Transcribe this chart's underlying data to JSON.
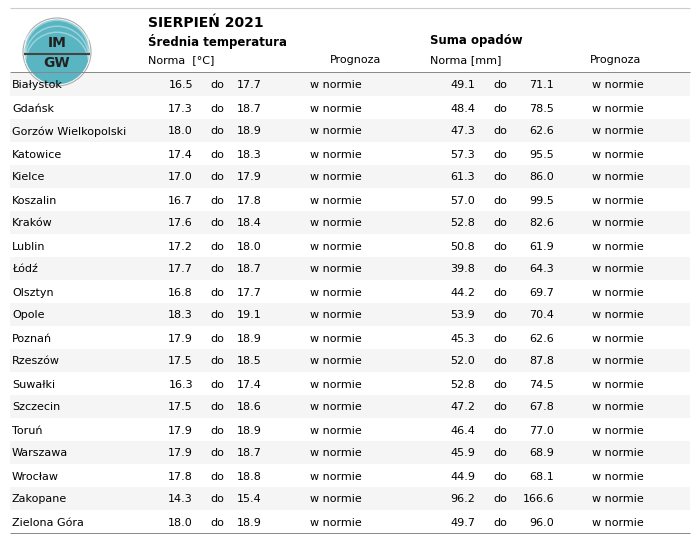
{
  "title": "SIERPIEŃ 2021",
  "subtitle_temp": "Średnia temperatura",
  "subtitle_prec": "Suma opadów",
  "cities": [
    "Białystok",
    "Gdańsk",
    "Gorzów Wielkopolski",
    "Katowice",
    "Kielce",
    "Koszalin",
    "Kraków",
    "Lublin",
    "Łódź",
    "Olsztyn",
    "Opole",
    "Poznań",
    "Rzeszów",
    "Suwałki",
    "Szczecin",
    "Toruń",
    "Warszawa",
    "Wrocław",
    "Zakopane",
    "Zielona Góra"
  ],
  "temp_low": [
    16.5,
    17.3,
    18.0,
    17.4,
    17.0,
    16.7,
    17.6,
    17.2,
    17.7,
    16.8,
    18.3,
    17.9,
    17.5,
    16.3,
    17.5,
    17.9,
    17.9,
    17.8,
    14.3,
    18.0
  ],
  "temp_high": [
    17.7,
    18.7,
    18.9,
    18.3,
    17.9,
    17.8,
    18.4,
    18.0,
    18.7,
    17.7,
    19.1,
    18.9,
    18.5,
    17.4,
    18.6,
    18.9,
    18.7,
    18.8,
    15.4,
    18.9
  ],
  "prec_low": [
    49.1,
    48.4,
    47.3,
    57.3,
    61.3,
    57.0,
    52.8,
    50.8,
    39.8,
    44.2,
    53.9,
    45.3,
    52.0,
    52.8,
    47.2,
    46.4,
    45.9,
    44.9,
    96.2,
    49.7
  ],
  "prec_high": [
    71.1,
    78.5,
    62.6,
    95.5,
    86.0,
    99.5,
    82.6,
    61.9,
    64.3,
    69.7,
    70.4,
    62.6,
    87.8,
    74.5,
    67.8,
    77.0,
    68.9,
    68.1,
    166.6,
    96.0
  ],
  "bg_color": "#ffffff",
  "text_color": "#000000",
  "line_color": "#888888",
  "logo_teal": "#5ab5c2",
  "logo_dark": "#3a7d8c",
  "logo_border": "#aaaaaa"
}
